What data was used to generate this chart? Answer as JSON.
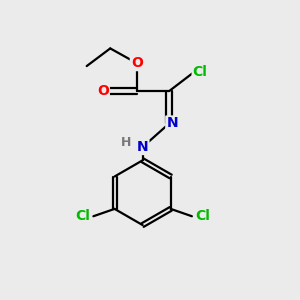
{
  "background_color": "#ebebeb",
  "bond_color": "#000000",
  "atom_colors": {
    "O": "#ff0000",
    "N": "#0000cc",
    "Cl": "#00bb00",
    "H_color": "#777777"
  },
  "figsize": [
    3.0,
    3.0
  ],
  "dpi": 100,
  "xlim": [
    0,
    10
  ],
  "ylim": [
    0,
    10
  ]
}
